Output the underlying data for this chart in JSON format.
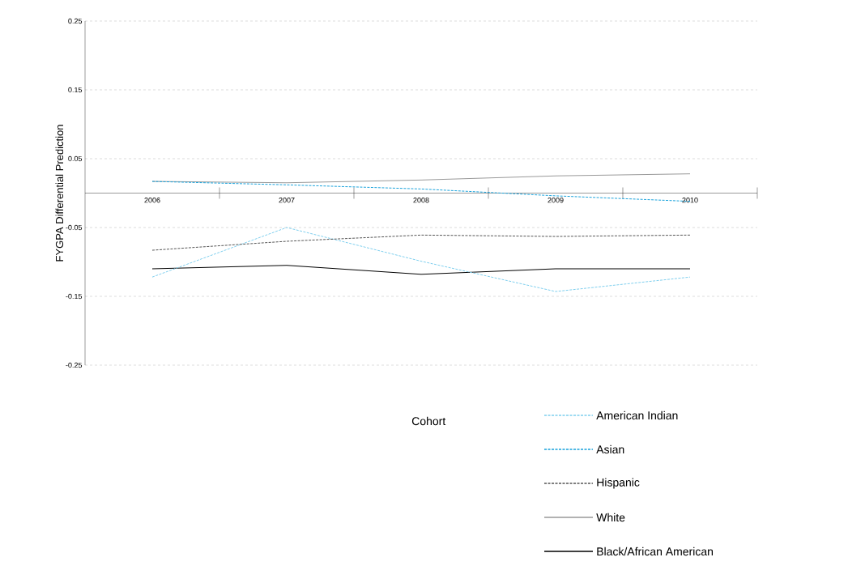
{
  "chart_data": {
    "type": "line",
    "ylabel": "FYGPA Differential Prediction",
    "legend_title": "Cohort",
    "categories": [
      "2006",
      "2007",
      "2008",
      "2009",
      "2010"
    ],
    "ylim": [
      -0.25,
      0.25
    ],
    "yticks": [
      -0.25,
      -0.15,
      -0.05,
      0.05,
      0.15,
      0.25
    ],
    "grid": "y",
    "legend": "bottom",
    "marker": "none",
    "series": [
      {
        "name": "American Indian",
        "color": "#7fcfee",
        "line_style": "dashed",
        "values": [
          -0.122,
          -0.05,
          -0.099,
          -0.143,
          -0.122
        ]
      },
      {
        "name": "Asian",
        "color": "#1aa3dc",
        "line_style": "dashed",
        "values": [
          0.017,
          0.012,
          0.006,
          -0.004,
          -0.012
        ]
      },
      {
        "name": "Hispanic",
        "color": "#555555",
        "line_style": "dashed",
        "values": [
          -0.083,
          -0.07,
          -0.061,
          -0.063,
          -0.061
        ]
      },
      {
        "name": "White",
        "color": "#999999",
        "line_style": "solid",
        "values": [
          0.017,
          0.015,
          0.019,
          0.025,
          0.028
        ]
      },
      {
        "name": "Black/African American",
        "color": "#000000",
        "line_style": "solid",
        "values": [
          -0.11,
          -0.105,
          -0.118,
          -0.11,
          -0.11
        ]
      }
    ]
  }
}
